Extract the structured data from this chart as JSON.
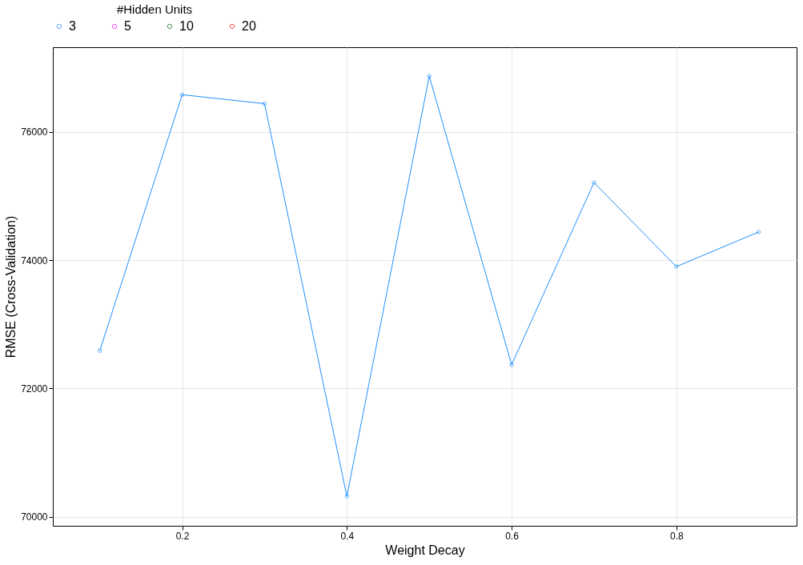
{
  "chart_data": {
    "type": "line",
    "xlabel": "Weight Decay",
    "ylabel": "RMSE (Cross-Validation)",
    "legend_title": "#Hidden Units",
    "x": [
      0.1,
      0.2,
      0.3,
      0.4,
      0.5,
      0.6,
      0.7,
      0.8,
      0.9
    ],
    "series": [
      {
        "name": "3",
        "color": "#1e90ff",
        "values": [
          72590,
          76580,
          76440,
          70320,
          76870,
          72370,
          75210,
          73900,
          74440
        ]
      },
      {
        "name": "5",
        "color": "#ff00ff",
        "values": [
          null,
          null,
          null,
          null,
          null,
          null,
          null,
          null,
          null
        ]
      },
      {
        "name": "10",
        "color": "#006400",
        "values": [
          null,
          null,
          null,
          null,
          null,
          null,
          null,
          null,
          null
        ]
      },
      {
        "name": "20",
        "color": "#ff0000",
        "values": [
          null,
          null,
          null,
          null,
          null,
          null,
          null,
          null,
          null
        ]
      }
    ],
    "xlim": [
      0.043,
      0.946
    ],
    "xticks": [
      0.2,
      0.4,
      0.6,
      0.8
    ],
    "ylim": [
      69860,
      77320
    ],
    "yticks": [
      70000,
      72000,
      74000,
      76000
    ],
    "grid": true,
    "legend": "top",
    "marker": "circle",
    "line_style": "solid"
  }
}
